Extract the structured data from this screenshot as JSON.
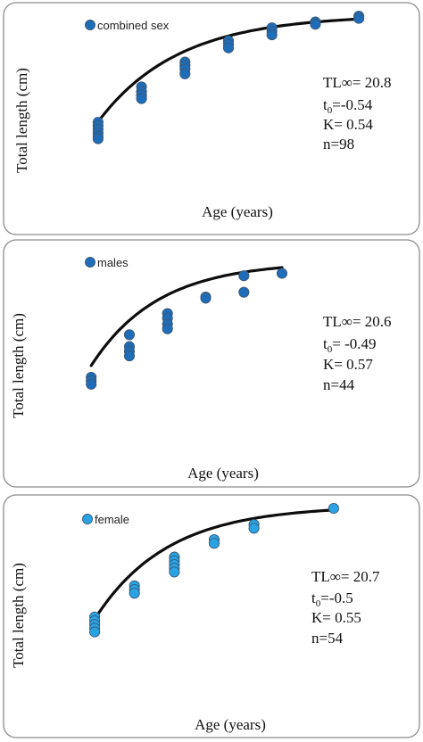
{
  "chart_data": [
    {
      "type": "scatter",
      "ylabel": "Total length (cm)",
      "xlabel": "Age (years)",
      "legend": "combined sex",
      "legend_position": "top-left",
      "grid": false,
      "axes_visible": false,
      "xlim": [
        0.55,
        7.45
      ],
      "ylim": [
        8,
        21
      ],
      "marker_color": "#1f6cb8",
      "curve_color": "#000000",
      "stats": {
        "tl_inf": "TL∞= 20.8",
        "t0_label": "t",
        "t0_sub": "0",
        "t0_value": "=-0.54",
        "k": "K= 0.54",
        "n": "n=98"
      },
      "curve": {
        "Linf": 20.8,
        "K": 0.54,
        "t0": -0.54,
        "x_from": 1,
        "x_to": 7
      },
      "points": [
        {
          "x": 1,
          "y": 11.7
        },
        {
          "x": 1,
          "y": 11.4
        },
        {
          "x": 1,
          "y": 11.1
        },
        {
          "x": 1,
          "y": 10.8
        },
        {
          "x": 1,
          "y": 10.5
        },
        {
          "x": 1,
          "y": 10.3
        },
        {
          "x": 2,
          "y": 14.7
        },
        {
          "x": 2,
          "y": 14.3
        },
        {
          "x": 2,
          "y": 14.0
        },
        {
          "x": 2,
          "y": 13.7
        },
        {
          "x": 3,
          "y": 16.8
        },
        {
          "x": 3,
          "y": 16.5
        },
        {
          "x": 3,
          "y": 16.2
        },
        {
          "x": 3,
          "y": 15.8
        },
        {
          "x": 4,
          "y": 18.6
        },
        {
          "x": 4,
          "y": 18.3
        },
        {
          "x": 4,
          "y": 18.0
        },
        {
          "x": 5,
          "y": 19.7
        },
        {
          "x": 5,
          "y": 19.4
        },
        {
          "x": 5,
          "y": 19.1
        },
        {
          "x": 6,
          "y": 20.2
        },
        {
          "x": 6,
          "y": 20.0
        },
        {
          "x": 7,
          "y": 20.7
        },
        {
          "x": 7,
          "y": 20.5
        }
      ]
    },
    {
      "type": "scatter",
      "ylabel": "Total length (cm)",
      "xlabel": "Age (years)",
      "legend": "males",
      "legend_position": "top-left",
      "grid": false,
      "axes_visible": false,
      "xlim": [
        0.55,
        7.45
      ],
      "ylim": [
        8,
        21
      ],
      "marker_color": "#1f6cb8",
      "curve_color": "#000000",
      "stats": {
        "tl_inf": "TL∞= 20.6",
        "t0_label": "t",
        "t0_sub": "0",
        "t0_value": "= -0.49",
        "k": "K= 0.57",
        "n": "n=44"
      },
      "curve": {
        "Linf": 20.6,
        "K": 0.57,
        "t0": -0.49,
        "x_from": 1,
        "x_to": 6
      },
      "points": [
        {
          "x": 1,
          "y": 10.8
        },
        {
          "x": 1,
          "y": 10.5
        },
        {
          "x": 1,
          "y": 10.2
        },
        {
          "x": 2,
          "y": 14.4
        },
        {
          "x": 2,
          "y": 13.4
        },
        {
          "x": 2,
          "y": 13.0
        },
        {
          "x": 2,
          "y": 12.6
        },
        {
          "x": 3,
          "y": 16.2
        },
        {
          "x": 3,
          "y": 15.8
        },
        {
          "x": 3,
          "y": 15.3
        },
        {
          "x": 3,
          "y": 14.9
        },
        {
          "x": 4,
          "y": 17.6
        },
        {
          "x": 4,
          "y": 17.5
        },
        {
          "x": 5,
          "y": 19.4
        },
        {
          "x": 5,
          "y": 18.0
        },
        {
          "x": 6,
          "y": 19.6
        }
      ]
    },
    {
      "type": "scatter",
      "ylabel": "Total length (cm)",
      "xlabel": "Age (years)",
      "legend": "female",
      "legend_position": "top-left",
      "grid": false,
      "axes_visible": false,
      "xlim": [
        0.55,
        7.45
      ],
      "ylim": [
        8,
        21
      ],
      "marker_color": "#2aa3e4",
      "curve_color": "#000000",
      "stats": {
        "tl_inf": "TL∞= 20.7",
        "t0_label": "t",
        "t0_sub": "0",
        "t0_value": "=-0.5",
        "k": "K= 0.55",
        "n": "n=54"
      },
      "curve": {
        "Linf": 20.7,
        "K": 0.55,
        "t0": -0.5,
        "x_from": 1,
        "x_to": 7
      },
      "points": [
        {
          "x": 1,
          "y": 11.8
        },
        {
          "x": 1,
          "y": 11.5
        },
        {
          "x": 1,
          "y": 11.2
        },
        {
          "x": 1,
          "y": 10.9
        },
        {
          "x": 1,
          "y": 10.6
        },
        {
          "x": 2,
          "y": 14.3
        },
        {
          "x": 2,
          "y": 14.0
        },
        {
          "x": 2,
          "y": 13.7
        },
        {
          "x": 3,
          "y": 16.6
        },
        {
          "x": 3,
          "y": 16.3
        },
        {
          "x": 3,
          "y": 16.0
        },
        {
          "x": 3,
          "y": 15.7
        },
        {
          "x": 3,
          "y": 15.4
        },
        {
          "x": 4,
          "y": 18.0
        },
        {
          "x": 4,
          "y": 17.7
        },
        {
          "x": 5,
          "y": 19.2
        },
        {
          "x": 5,
          "y": 18.9
        },
        {
          "x": 7,
          "y": 20.5
        }
      ]
    }
  ]
}
